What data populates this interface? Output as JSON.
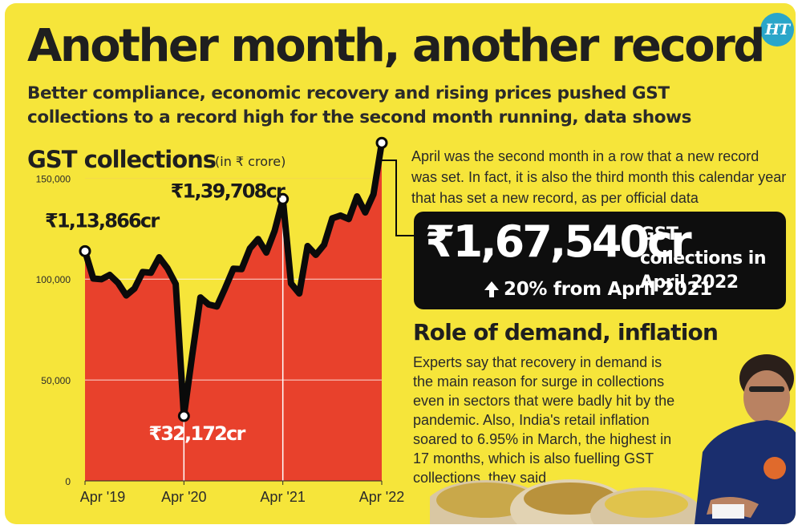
{
  "headline": "Another month, another record",
  "subheadline": "Better compliance, economic recovery and rising prices pushed GST collections to a record high for the second month running, data shows",
  "logo_text": "HT",
  "chart_title": "GST collections",
  "chart_unit": "(in ₹ crore)",
  "chart_data": {
    "type": "area",
    "title": "GST collections",
    "unit": "(in ₹ crore)",
    "x_tick_labels": [
      "Apr '19",
      "Apr '20",
      "Apr '21",
      "Apr '22"
    ],
    "y_tick_labels": [
      "0",
      "50,000",
      "100,000",
      "150,000"
    ],
    "ylim": [
      0,
      170000
    ],
    "grid": true,
    "colors": {
      "fill": "#e8412c",
      "line": "#0a0a0a",
      "grid": "#ffffff"
    },
    "series": [
      {
        "x": [
          "Apr 2019",
          "May 2019",
          "Jun 2019",
          "Jul 2019",
          "Aug 2019",
          "Sep 2019",
          "Oct 2019",
          "Nov 2019",
          "Dec 2019",
          "Jan 2020",
          "Feb 2020",
          "Mar 2020",
          "Apr 2020",
          "May 2020",
          "Jun 2020",
          "Jul 2020",
          "Aug 2020",
          "Sep 2020",
          "Oct 2020",
          "Nov 2020",
          "Dec 2020",
          "Jan 2021",
          "Feb 2021",
          "Mar 2021",
          "Apr 2021",
          "May 2021",
          "Jun 2021",
          "Jul 2021",
          "Aug 2021",
          "Sep 2021",
          "Oct 2021",
          "Nov 2021",
          "Dec 2021",
          "Jan 2022",
          "Feb 2022",
          "Mar 2022",
          "Apr 2022"
        ],
        "values": [
          113866,
          100289,
          99939,
          102083,
          98202,
          91916,
          95380,
          103492,
          103184,
          110818,
          105366,
          97597,
          32172,
          62151,
          90917,
          87422,
          86449,
          95480,
          105155,
          104963,
          115174,
          119875,
          113143,
          123902,
          139708,
          97821,
          92849,
          116393,
          112020,
          117010,
          130127,
          131526,
          129780,
          140986,
          133026,
          142095,
          167540
        ]
      }
    ],
    "annotations": [
      {
        "label": "₹1,13,866cr",
        "x": "Apr 2019",
        "value": 113866
      },
      {
        "label": "₹32,172cr",
        "x": "Apr 2020",
        "value": 32172
      },
      {
        "label": "₹1,39,708cr",
        "x": "Apr 2021",
        "value": 139708
      }
    ]
  },
  "side_note": "April was the second month in a row that a new record was set. In fact, it is also the third month this calendar year that has set a new record, as per official data",
  "callout": {
    "value": "₹1,67,540cr",
    "label": "GST collections in April 2022",
    "growth_text": "20% from April 2021"
  },
  "section_heading": "Role of demand, inflation",
  "section_body": "Experts say that recovery in demand is the main reason for surge in collections even in sectors that were badly hit by the pandemic. Also, India's retail inflation soared to 6.95% in March, the highest in 17 months, which is also fuelling GST collections, they said",
  "colors": {
    "background": "#f6e53a",
    "accent": "#e8412c",
    "callout_bg": "#0e0e0e"
  }
}
